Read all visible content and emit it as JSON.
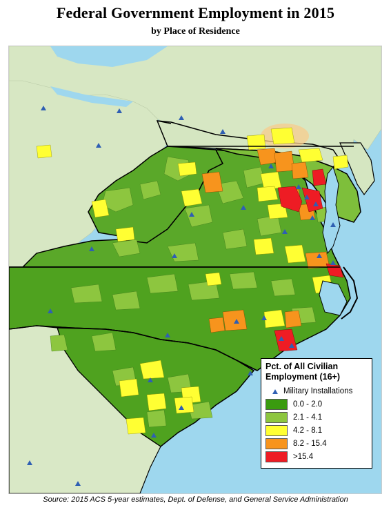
{
  "header": {
    "title": "Federal Government Employment in 2015",
    "subtitle": "by Place of Residence"
  },
  "legend": {
    "title_line1": "Pct. of All Civilian",
    "title_line2": "Employment (16+)",
    "military_label": "Military Installations",
    "military_color": "#2f5fb3",
    "classes": [
      {
        "label": "0.0 - 2.0",
        "color": "#3a9b0f"
      },
      {
        "label": "2.1 - 4.1",
        "color": "#8dc63f"
      },
      {
        "label": "4.2 - 8.1",
        "color": "#ffff33"
      },
      {
        "label": "8.2 - 15.4",
        "color": "#f7941d"
      },
      {
        "label": ">15.4",
        "color": "#ee1c24"
      }
    ]
  },
  "colors": {
    "water": "#9ed7ee",
    "outside_land": "#d7e7c3",
    "state_border": "#000000"
  },
  "footer": {
    "source": "Source: 2015 ACS 5-year estimates, Dept. of Defense, and General Service Administration"
  }
}
